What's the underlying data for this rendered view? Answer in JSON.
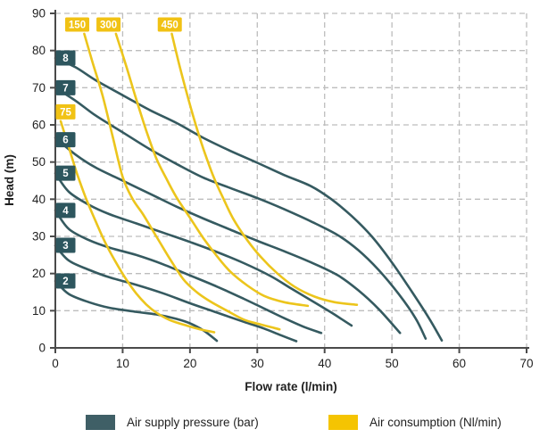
{
  "chart_data": {
    "type": "line",
    "title": "",
    "xlabel": "Flow rate (l/min)",
    "ylabel": "Head (m)",
    "xlim": [
      0,
      70
    ],
    "ylim": [
      0,
      90
    ],
    "xticks": [
      0,
      10,
      20,
      30,
      40,
      50,
      60,
      70
    ],
    "yticks": [
      0,
      10,
      20,
      30,
      40,
      50,
      60,
      70,
      80,
      90
    ],
    "grid": "dashed",
    "legend_position": "bottom",
    "colors": {
      "pressure": "#355a60",
      "consumption": "#ecc51c",
      "pressure_badge": "#2d565e",
      "consumption_badge": "#f1c214",
      "grid": "#bdbdbd",
      "axis": "#4a4a4a"
    },
    "series": [
      {
        "name": "8 bar",
        "group": "pressure",
        "badge": {
          "text": "8",
          "at": "left",
          "head": 78
        },
        "points": [
          [
            0,
            78
          ],
          [
            3,
            75.5
          ],
          [
            6,
            72
          ],
          [
            10,
            68
          ],
          [
            14,
            64
          ],
          [
            18,
            60.5
          ],
          [
            22,
            56.5
          ],
          [
            26,
            53
          ],
          [
            30,
            49.8
          ],
          [
            34,
            46.5
          ],
          [
            38,
            43.5
          ],
          [
            41,
            40
          ],
          [
            44,
            35.5
          ],
          [
            47,
            30
          ],
          [
            50,
            23
          ],
          [
            53,
            15
          ],
          [
            55.5,
            8
          ],
          [
            57.4,
            2
          ]
        ]
      },
      {
        "name": "7 bar",
        "group": "pressure",
        "badge": {
          "text": "7",
          "at": "left",
          "head": 70
        },
        "points": [
          [
            0,
            70
          ],
          [
            3,
            66.5
          ],
          [
            6,
            62.5
          ],
          [
            10,
            58
          ],
          [
            14,
            53.5
          ],
          [
            18,
            49.5
          ],
          [
            22,
            45.8
          ],
          [
            26,
            43
          ],
          [
            30,
            40.3
          ],
          [
            34,
            37.3
          ],
          [
            38,
            34
          ],
          [
            42,
            30.3
          ],
          [
            45,
            26.3
          ],
          [
            48,
            21
          ],
          [
            51,
            14.5
          ],
          [
            53.5,
            8
          ],
          [
            55,
            2.5
          ]
        ]
      },
      {
        "name": "6 bar",
        "group": "pressure",
        "badge": {
          "text": "6",
          "at": "left",
          "head": 56
        },
        "points": [
          [
            0,
            56.5
          ],
          [
            3,
            52
          ],
          [
            6,
            48.5
          ],
          [
            10,
            45
          ],
          [
            14,
            41.5
          ],
          [
            18,
            38
          ],
          [
            22,
            34.8
          ],
          [
            26,
            31.8
          ],
          [
            30,
            28.8
          ],
          [
            34,
            26
          ],
          [
            38,
            23
          ],
          [
            42,
            19.5
          ],
          [
            45,
            15.5
          ],
          [
            48,
            10.5
          ],
          [
            51.2,
            4
          ]
        ]
      },
      {
        "name": "5 bar",
        "group": "pressure",
        "badge": {
          "text": "5",
          "at": "left",
          "head": 47
        },
        "points": [
          [
            0,
            47
          ],
          [
            2,
            42
          ],
          [
            5,
            38.5
          ],
          [
            8,
            36
          ],
          [
            12,
            33.5
          ],
          [
            16,
            31
          ],
          [
            20,
            28.5
          ],
          [
            24,
            25.8
          ],
          [
            28,
            22.8
          ],
          [
            32,
            19.3
          ],
          [
            35,
            16
          ],
          [
            38,
            12.8
          ],
          [
            41,
            9.5
          ],
          [
            44,
            6
          ]
        ]
      },
      {
        "name": "4 bar",
        "group": "pressure",
        "badge": {
          "text": "4",
          "at": "left",
          "head": 37
        },
        "points": [
          [
            0,
            37
          ],
          [
            2,
            32
          ],
          [
            5,
            29
          ],
          [
            8,
            27
          ],
          [
            12,
            25
          ],
          [
            16,
            22.5
          ],
          [
            20,
            19.5
          ],
          [
            24,
            16.5
          ],
          [
            28,
            13.2
          ],
          [
            31,
            10.6
          ],
          [
            34,
            8
          ],
          [
            37,
            5.6
          ],
          [
            39.5,
            4
          ]
        ]
      },
      {
        "name": "3 bar",
        "group": "pressure",
        "badge": {
          "text": "3",
          "at": "left",
          "head": 27.6
        },
        "points": [
          [
            0,
            27.5
          ],
          [
            2,
            23.5
          ],
          [
            5,
            21
          ],
          [
            8,
            19
          ],
          [
            12,
            17
          ],
          [
            16,
            14.7
          ],
          [
            20,
            12
          ],
          [
            24,
            9.5
          ],
          [
            28,
            7
          ],
          [
            31,
            5.2
          ],
          [
            33.5,
            3.4
          ],
          [
            35.8,
            1.8
          ]
        ]
      },
      {
        "name": "2 bar",
        "group": "pressure",
        "badge": {
          "text": "2",
          "at": "left",
          "head": 18
        },
        "points": [
          [
            0,
            18
          ],
          [
            2,
            14.5
          ],
          [
            5,
            12.3
          ],
          [
            8,
            10.8
          ],
          [
            12,
            9.7
          ],
          [
            15,
            9
          ],
          [
            18,
            7.8
          ],
          [
            20,
            6.6
          ],
          [
            22,
            4.7
          ],
          [
            24,
            1.9
          ]
        ]
      },
      {
        "name": "75 Nl/min",
        "group": "consumption",
        "badge": {
          "text": "75",
          "at": "left",
          "head": 63.5
        },
        "points": [
          [
            0.8,
            61
          ],
          [
            2,
            54
          ],
          [
            3.2,
            47
          ],
          [
            4.5,
            40.5
          ],
          [
            6,
            34
          ],
          [
            7.5,
            28
          ],
          [
            9,
            23
          ],
          [
            10.5,
            18.5
          ],
          [
            12,
            14.7
          ],
          [
            13.5,
            11.7
          ],
          [
            15,
            9.5
          ],
          [
            17,
            7.5
          ],
          [
            19.5,
            6
          ],
          [
            21.5,
            5
          ],
          [
            23.6,
            4.2
          ]
        ]
      },
      {
        "name": "150 Nl/min",
        "group": "consumption",
        "badge": {
          "text": "150",
          "at": "top",
          "flow": 3.25,
          "head": 87
        },
        "points": [
          [
            4.3,
            84.5
          ],
          [
            5.5,
            77
          ],
          [
            7,
            68
          ],
          [
            8.5,
            57
          ],
          [
            10,
            46
          ],
          [
            11.5,
            40
          ],
          [
            13,
            36
          ],
          [
            15,
            30
          ],
          [
            17,
            24
          ],
          [
            19,
            18.5
          ],
          [
            21,
            15
          ],
          [
            23,
            12.5
          ],
          [
            25.5,
            10
          ],
          [
            28,
            7.6
          ],
          [
            30.5,
            6.3
          ],
          [
            33.3,
            5
          ]
        ]
      },
      {
        "name": "300 Nl/min",
        "group": "consumption",
        "badge": {
          "text": "300",
          "at": "top",
          "flow": 7.9,
          "head": 87
        },
        "points": [
          [
            9,
            84.5
          ],
          [
            10.5,
            76
          ],
          [
            12,
            67
          ],
          [
            13.5,
            58.5
          ],
          [
            15,
            51
          ],
          [
            16.5,
            45.5
          ],
          [
            18,
            40.5
          ],
          [
            20,
            35
          ],
          [
            22,
            29.5
          ],
          [
            24,
            24.7
          ],
          [
            26,
            20.5
          ],
          [
            28.5,
            16.8
          ],
          [
            31,
            14
          ],
          [
            34,
            12.3
          ],
          [
            37.5,
            11.3
          ]
        ]
      },
      {
        "name": "450 Nl/min",
        "group": "consumption",
        "badge": {
          "text": "450",
          "at": "top",
          "flow": 17,
          "head": 87
        },
        "points": [
          [
            17.3,
            84.5
          ],
          [
            18.3,
            77
          ],
          [
            19.3,
            70
          ],
          [
            20.7,
            61
          ],
          [
            22,
            53.5
          ],
          [
            23.5,
            46
          ],
          [
            25,
            40
          ],
          [
            26.5,
            34.5
          ],
          [
            28.5,
            29
          ],
          [
            30.5,
            24.5
          ],
          [
            33,
            20
          ],
          [
            35.5,
            16.5
          ],
          [
            38.5,
            13.8
          ],
          [
            41.5,
            12.3
          ],
          [
            44.8,
            11.6
          ]
        ]
      }
    ]
  },
  "legend": {
    "items": [
      {
        "label": "Air supply pressure (bar)",
        "color": "#3f5f66"
      },
      {
        "label": "Air consumption (Nl/min)",
        "color": "#f5c402"
      }
    ]
  }
}
